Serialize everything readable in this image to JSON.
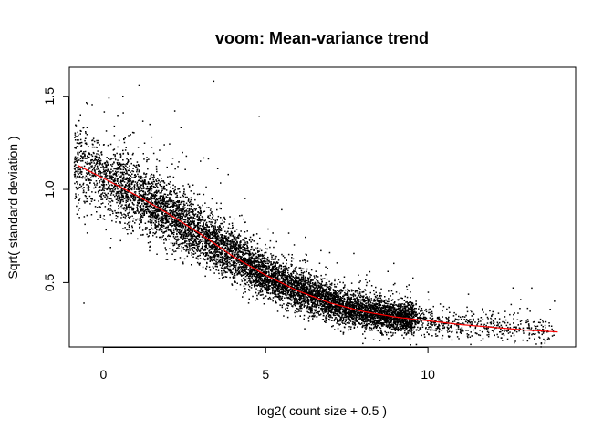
{
  "chart_data": {
    "type": "scatter",
    "title": "voom: Mean-variance trend",
    "xlabel": "log2( count size + 0.5 )",
    "ylabel": "Sqrt( standard deviation )",
    "xlim": [
      -1.05,
      14.55
    ],
    "ylim": [
      0.155,
      1.655
    ],
    "x_ticks": [
      0,
      5,
      10
    ],
    "y_ticks": [
      0.5,
      1.0,
      1.5
    ],
    "x_tick_labels": [
      "0",
      "5",
      "10"
    ],
    "y_tick_labels": [
      "0.5",
      "1.0",
      "1.5"
    ],
    "grid": false,
    "legend": "none",
    "point_color": "#000000",
    "trend_color": "#ff0000",
    "trend_line": {
      "name": "",
      "x": [
        -0.8,
        0,
        1,
        2,
        3,
        4,
        5,
        6,
        7,
        8,
        9,
        10,
        11,
        12,
        13,
        14
      ],
      "y": [
        1.13,
        1.06,
        0.97,
        0.87,
        0.76,
        0.64,
        0.54,
        0.455,
        0.39,
        0.345,
        0.315,
        0.295,
        0.275,
        0.26,
        0.245,
        0.235
      ]
    },
    "scatter_summary": {
      "x_range": [
        -0.9,
        13.9
      ],
      "y_range": [
        0.15,
        1.59
      ],
      "approx_points": 9000
    },
    "outliers": [
      {
        "x": 0.6,
        "y": 1.5
      },
      {
        "x": 1.1,
        "y": 1.56
      },
      {
        "x": 3.4,
        "y": 1.58
      },
      {
        "x": 4.8,
        "y": 1.39
      },
      {
        "x": 2.2,
        "y": 1.42
      },
      {
        "x": -0.6,
        "y": 0.39
      },
      {
        "x": 13.9,
        "y": 0.4
      }
    ]
  }
}
